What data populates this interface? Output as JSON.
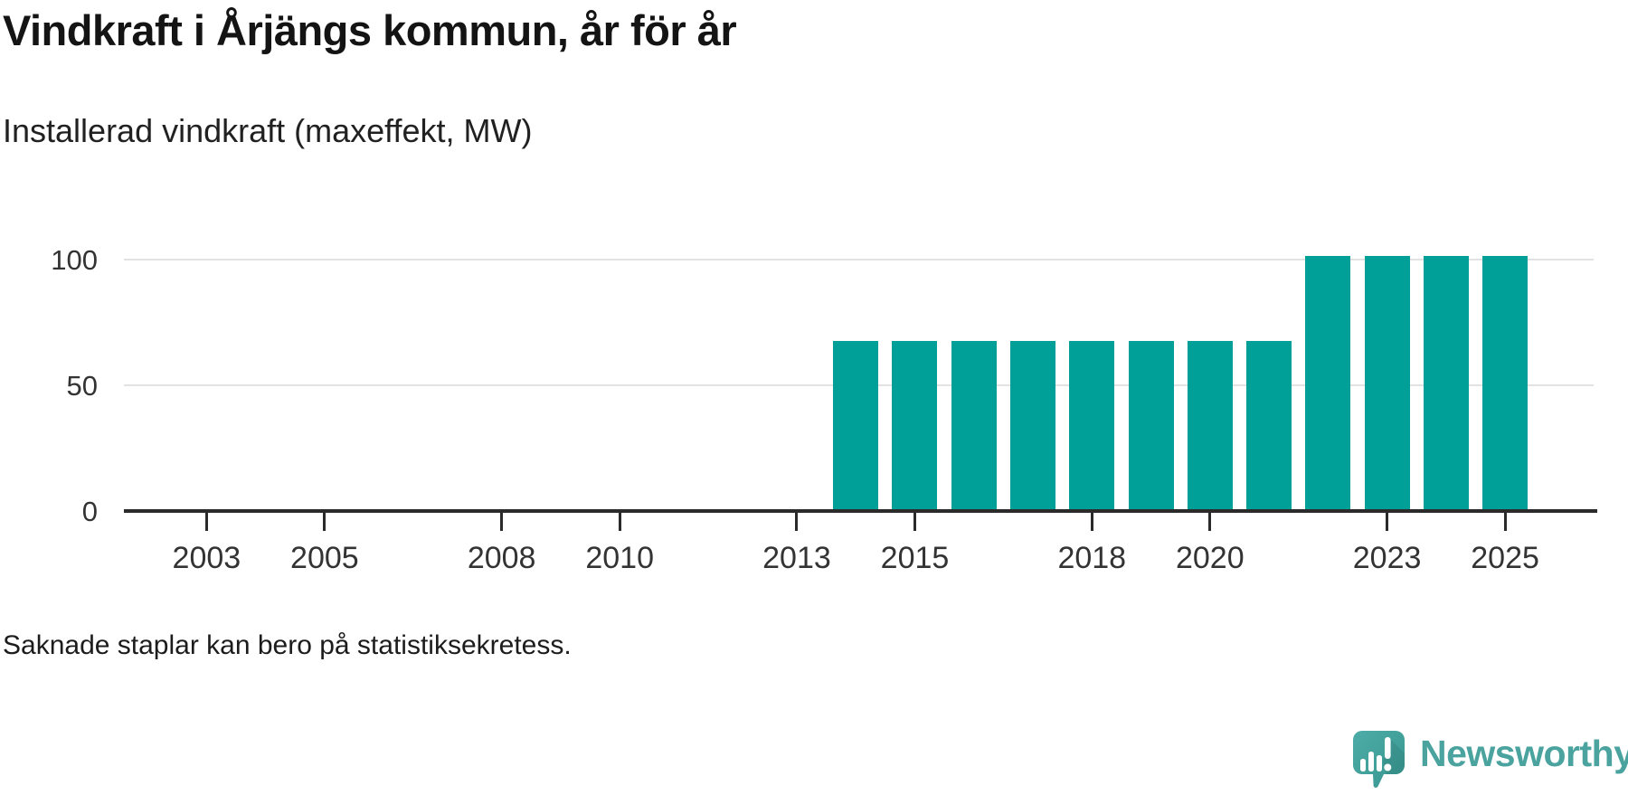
{
  "header": {
    "title": "Vindkraft i Årjängs kommun, år för år",
    "subtitle": "Installerad vindkraft (maxeffekt, MW)"
  },
  "footnote": "Saknade staplar kan bero på statistiksekretess.",
  "brand": {
    "name": "Newsworthy",
    "icon": "newsworthy-speech-bubble-chart-icon",
    "text_color": "#4aa39e",
    "icon_color": "#41a19c"
  },
  "colors": {
    "bar": "#00a099",
    "axis": "#2b2b2b",
    "grid": "#e2e2e2",
    "tick_label": "#333333",
    "title": "#141414"
  },
  "chart_data": {
    "type": "bar",
    "title": "Vindkraft i Årjängs kommun, år för år",
    "subtitle": "Installerad vindkraft (maxeffekt, MW)",
    "unit": "MW",
    "x": [
      2014,
      2015,
      2016,
      2017,
      2018,
      2019,
      2020,
      2021,
      2022,
      2023,
      2024,
      2025
    ],
    "values": [
      67.5,
      67.5,
      67.5,
      67.5,
      67.5,
      67.5,
      67.5,
      67.5,
      101.5,
      101.5,
      101.5,
      101.5
    ],
    "xlabel": "",
    "ylabel": "",
    "ylim": [
      0,
      120
    ],
    "yticks": [
      0,
      50,
      100
    ],
    "xticks": [
      2003,
      2005,
      2008,
      2010,
      2013,
      2015,
      2018,
      2020,
      2023,
      2025
    ],
    "x_domain": [
      2001.6,
      2026.5
    ],
    "grid": "horizontal",
    "legend": "none",
    "note": "Years 2002-2013 show no bars (missing / zero values)"
  }
}
